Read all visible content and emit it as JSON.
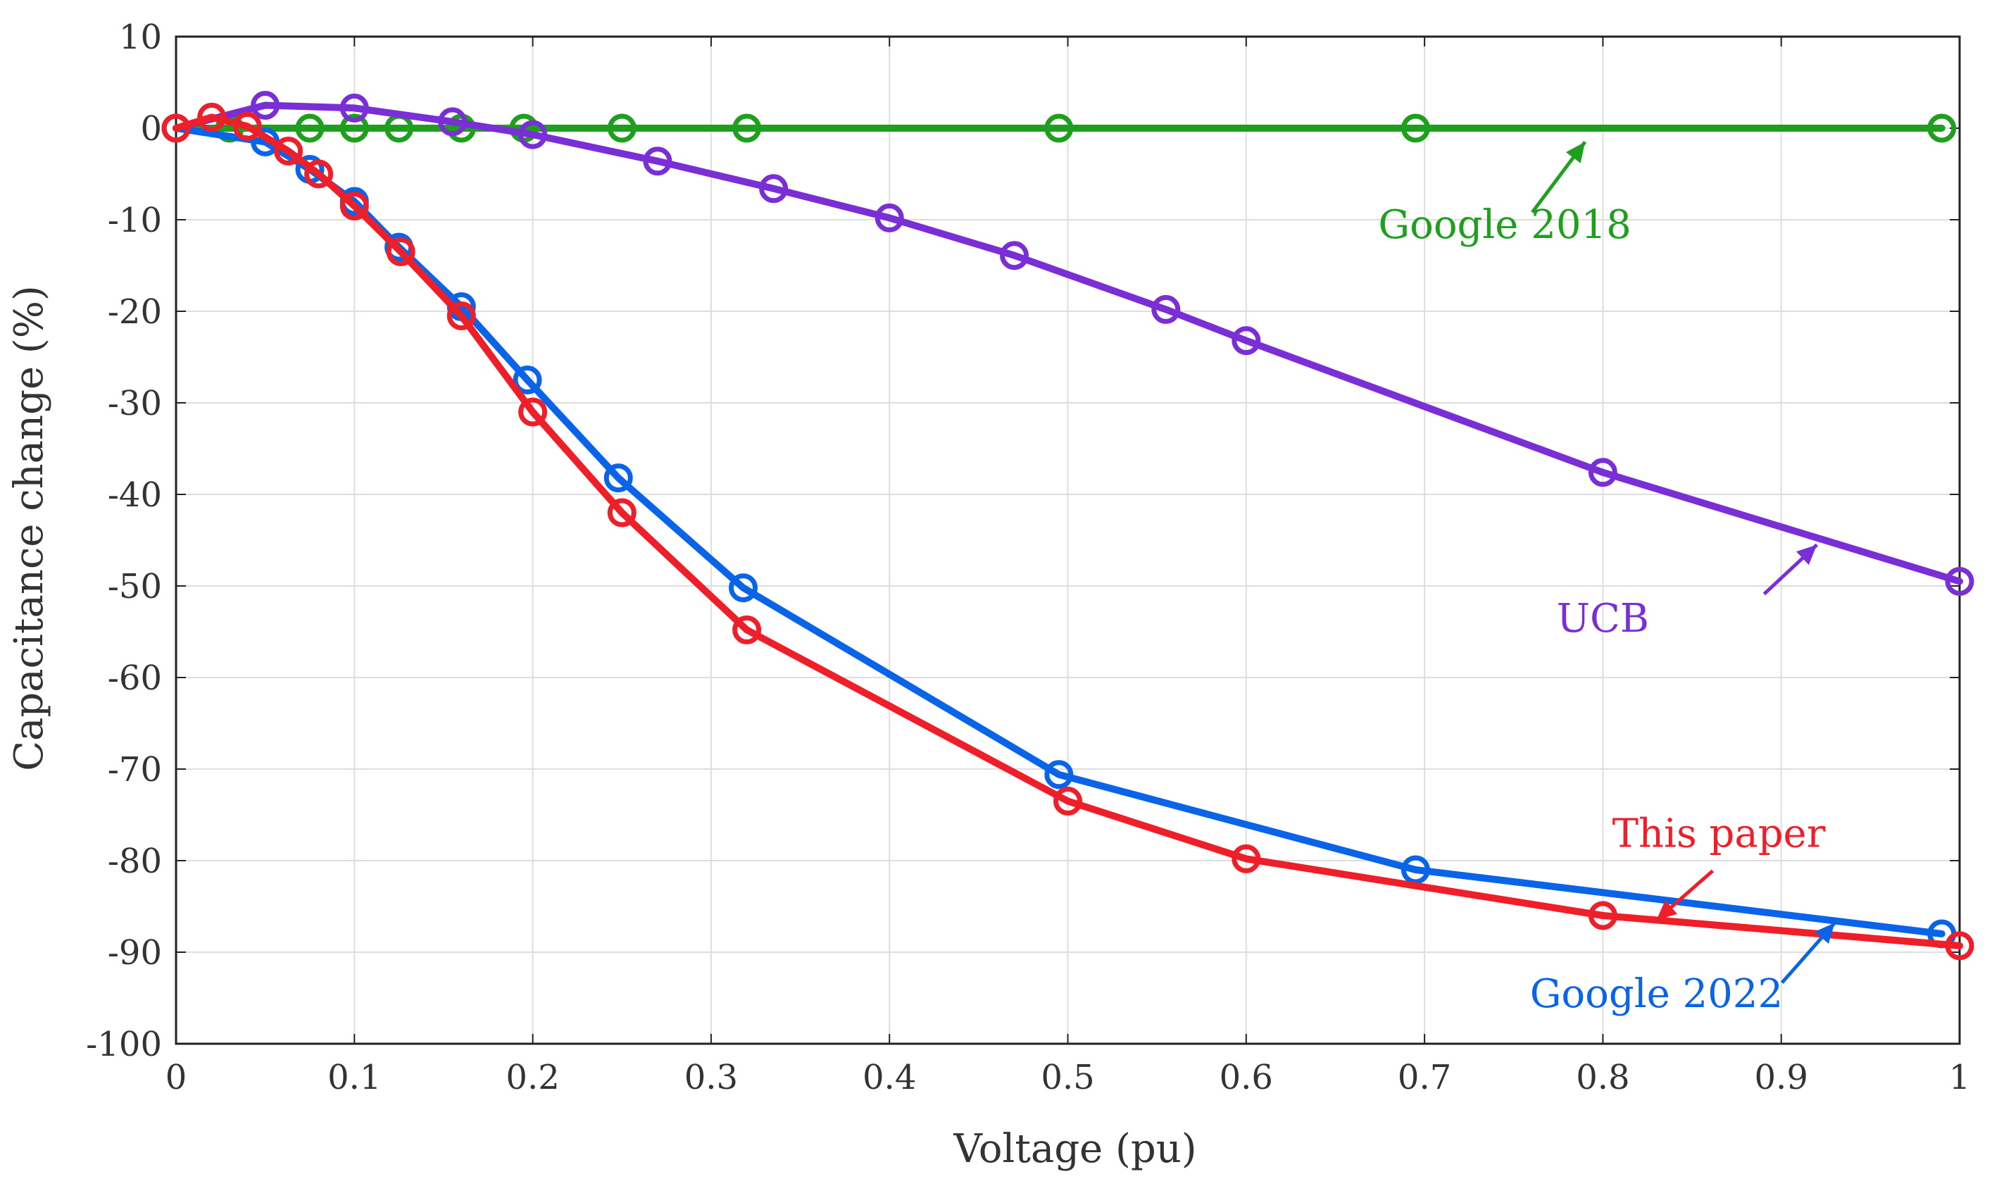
{
  "chart_data": {
    "type": "line",
    "title": "",
    "xlabel": "Voltage (pu)",
    "ylabel": "Capacitance change (%)",
    "xlim": [
      0,
      1
    ],
    "ylim": [
      -100,
      10
    ],
    "xticks": [
      0,
      0.1,
      0.2,
      0.3,
      0.4,
      0.5,
      0.6,
      0.7,
      0.8,
      0.9,
      1
    ],
    "xtick_labels": [
      "0",
      "0.1",
      "0.2",
      "0.3",
      "0.4",
      "0.5",
      "0.6",
      "0.7",
      "0.8",
      "0.9",
      "1"
    ],
    "yticks": [
      10,
      0,
      -10,
      -20,
      -30,
      -40,
      -50,
      -60,
      -70,
      -80,
      -90,
      -100
    ],
    "ytick_labels": [
      "10",
      "0",
      "-10",
      "-20",
      "-30",
      "-40",
      "-50",
      "-60",
      "-70",
      "-80",
      "-90",
      "-100"
    ],
    "grid": true,
    "series": [
      {
        "name": "Google 2018",
        "color": "#1ea01e",
        "x": [
          0,
          0.03,
          0.075,
          0.1,
          0.125,
          0.16,
          0.195,
          0.25,
          0.32,
          0.495,
          0.695,
          0.99
        ],
        "y": [
          0,
          0,
          0,
          0,
          0,
          0,
          0,
          0,
          0,
          0,
          0,
          0
        ]
      },
      {
        "name": "UCB",
        "color": "#7a2fd6",
        "x": [
          0,
          0.05,
          0.1,
          0.155,
          0.2,
          0.27,
          0.335,
          0.4,
          0.47,
          0.555,
          0.6,
          0.8,
          1.0
        ],
        "y": [
          0,
          2.5,
          2.2,
          0.7,
          -0.7,
          -3.6,
          -6.6,
          -9.8,
          -13.9,
          -19.8,
          -23.2,
          -37.6,
          -49.5
        ]
      },
      {
        "name": "Google 2022",
        "color": "#0a64e8",
        "x": [
          0,
          0.05,
          0.075,
          0.1,
          0.125,
          0.16,
          0.197,
          0.248,
          0.318,
          0.495,
          0.695,
          0.99
        ],
        "y": [
          0,
          -1.5,
          -4.5,
          -8,
          -13,
          -19.5,
          -27.5,
          -38.2,
          -50.2,
          -70.6,
          -81,
          -88
        ]
      },
      {
        "name": "This paper",
        "color": "#ef1f2a",
        "x": [
          0,
          0.02,
          0.04,
          0.063,
          0.08,
          0.1,
          0.126,
          0.16,
          0.2,
          0.25,
          0.32,
          0.5,
          0.6,
          0.8,
          1.0
        ],
        "y": [
          0,
          1.2,
          0.2,
          -2.5,
          -5,
          -8.5,
          -13.5,
          -20.5,
          -31,
          -42,
          -54.8,
          -73.5,
          -79.8,
          -86,
          -89.3
        ]
      }
    ],
    "annotations": [
      {
        "text": "Google 2018",
        "color": "#1ea01e",
        "series": "Google 2018",
        "arrow_to": [
          0.79,
          -1.5
        ],
        "label_at": [
          0.745,
          -12
        ]
      },
      {
        "text": "UCB",
        "color": "#7a2fd6",
        "series": "UCB",
        "arrow_to": [
          0.92,
          -45.5
        ],
        "label_at": [
          0.8,
          -55
        ]
      },
      {
        "text": "This paper",
        "color": "#ef1f2a",
        "series": "This paper",
        "arrow_to": [
          0.83,
          -86.5
        ],
        "label_at": [
          0.865,
          -78.5
        ]
      },
      {
        "text": "Google 2022",
        "color": "#0a64e8",
        "series": "Google 2022",
        "arrow_to": [
          0.93,
          -86.8
        ],
        "label_at": [
          0.83,
          -96
        ]
      }
    ]
  }
}
